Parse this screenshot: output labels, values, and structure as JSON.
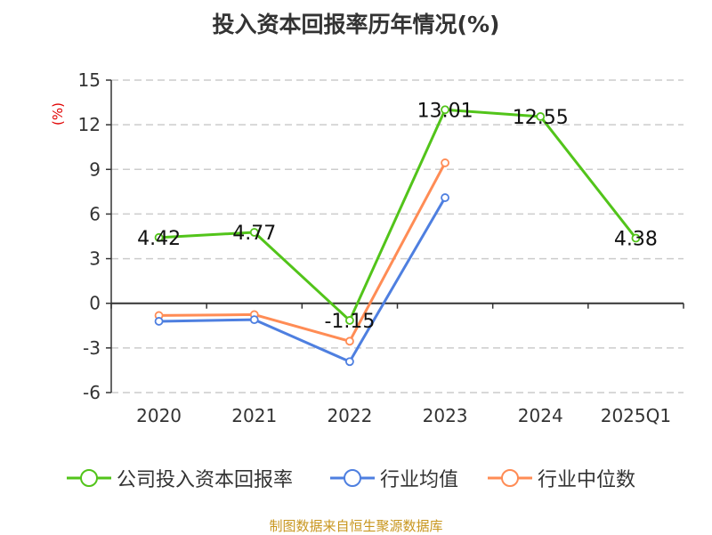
{
  "chart_data": {
    "type": "line",
    "title": "投入资本回报率历年情况(%)",
    "ylabel": "(%)",
    "xlabel": "",
    "categories": [
      "2020",
      "2021",
      "2022",
      "2023",
      "2024",
      "2025Q1"
    ],
    "ylim": [
      -6,
      15
    ],
    "yticks": [
      15,
      12,
      9,
      6,
      3,
      0,
      -3,
      -6
    ],
    "grid": true,
    "legend_position": "bottom",
    "series": [
      {
        "name": "公司投入资本回报率",
        "color": "#52c41a",
        "values": [
          4.42,
          4.77,
          -1.15,
          13.01,
          12.55,
          4.38
        ],
        "labels": [
          "4.42",
          "4.77",
          "-1.15",
          "13.01",
          "12.55",
          "4.38"
        ]
      },
      {
        "name": "行业均值",
        "color": "#4e7fe0",
        "values": [
          -1.21,
          -1.1,
          -3.92,
          7.1,
          null,
          null
        ]
      },
      {
        "name": "行业中位数",
        "color": "#ff8c55",
        "values": [
          -0.82,
          -0.76,
          -2.55,
          9.44,
          null,
          null
        ]
      }
    ]
  },
  "footer": "制图数据来自恒生聚源数据库"
}
